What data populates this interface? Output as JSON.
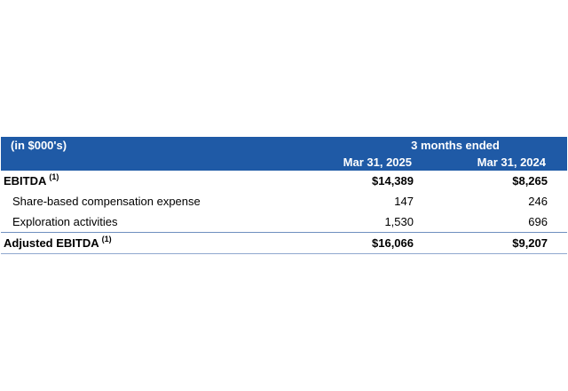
{
  "table": {
    "units_label": "(in $000's)",
    "period_label": "3 months ended",
    "col1": "Mar 31, 2025",
    "col2": "Mar 31, 2024",
    "rows": [
      {
        "label": "EBITDA",
        "footnote": "(1)",
        "v1": "$14,389",
        "v2": "$8,265"
      },
      {
        "label": "Share-based compensation expense",
        "v1": "147",
        "v2": "246"
      },
      {
        "label": "Exploration activities",
        "v1": "1,530",
        "v2": "696"
      },
      {
        "label": "Adjusted EBITDA",
        "footnote": "(1)",
        "v1": "$16,066",
        "v2": "$9,207"
      }
    ]
  }
}
